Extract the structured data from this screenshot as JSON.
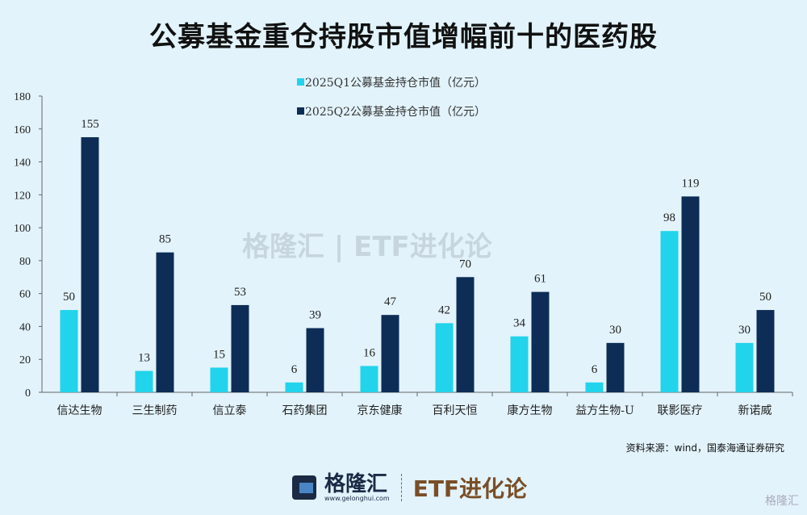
{
  "chart_data": {
    "type": "bar",
    "title": "公募基金重仓持股市值增幅前十的医药股",
    "categories": [
      "信达生物",
      "三生制药",
      "信立泰",
      "石药集团",
      "京东健康",
      "百利天恒",
      "康方生物",
      "益方生物-U",
      "联影医疗",
      "新诺威"
    ],
    "series": [
      {
        "name": "2025Q1公募基金持仓市值（亿元）",
        "color": "#22d3ec",
        "values": [
          50,
          13,
          15,
          6,
          16,
          42,
          34,
          6,
          98,
          30
        ]
      },
      {
        "name": "2025Q2公募基金持仓市值（亿元）",
        "color": "#0d2d57",
        "values": [
          155,
          85,
          53,
          39,
          47,
          70,
          61,
          30,
          119,
          50
        ]
      }
    ],
    "ylim": [
      0,
      180
    ],
    "yticks": [
      0,
      20,
      40,
      60,
      80,
      100,
      120,
      140,
      160,
      180
    ],
    "legend": "top-center",
    "grid": false
  },
  "source": "资料来源：wind，国泰海通证券研究",
  "watermark": "格隆汇 | ETF进化论",
  "footer": {
    "brand": "格隆汇",
    "url": "www.gelonghui.com",
    "column": "ETF进化论",
    "corner": "格隆汇"
  }
}
